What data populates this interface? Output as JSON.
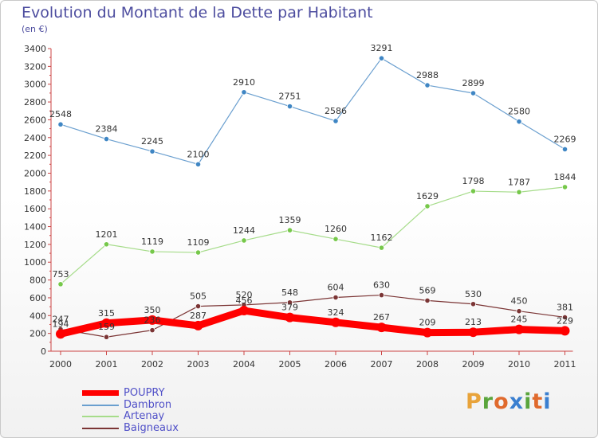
{
  "header": {
    "title": "Evolution du Montant de la Dette par Habitant",
    "subtitle": "(en €)"
  },
  "logo": {
    "text": "Proxiti",
    "letter_colors": [
      "#e8a33a",
      "#5aa53c",
      "#e06a2d",
      "#3a7fd0",
      "#5aa53c",
      "#e06a2d",
      "#3a7fd0"
    ]
  },
  "chart_data": {
    "type": "line",
    "title": "Evolution du Montant de la Dette par Habitant",
    "subtitle": "(en €)",
    "xlabel": "",
    "ylabel": "",
    "x": [
      "2000",
      "2001",
      "2002",
      "2003",
      "2004",
      "2005",
      "2006",
      "2007",
      "2008",
      "2009",
      "2010",
      "2011"
    ],
    "ylim": [
      0,
      3400
    ],
    "yticks": [
      0,
      200,
      400,
      600,
      800,
      1000,
      1200,
      1400,
      1600,
      1800,
      2000,
      2200,
      2400,
      2600,
      2800,
      3000,
      3200,
      3400
    ],
    "grid": false,
    "legend_position": "bottom-left",
    "series": [
      {
        "name": "Dambron",
        "color": "#6a9fcf",
        "marker_color": "#3f86c4",
        "values": [
          2548,
          2384,
          2245,
          2100,
          2910,
          2751,
          2586,
          3291,
          2988,
          2899,
          2580,
          2269
        ]
      },
      {
        "name": "Artenay",
        "color": "#a6dc8a",
        "marker_color": "#76c84a",
        "values": [
          753,
          1201,
          1119,
          1109,
          1244,
          1359,
          1260,
          1162,
          1629,
          1798,
          1787,
          1844
        ]
      },
      {
        "name": "Baigneaux",
        "color": "#7b3535",
        "marker_color": "#7b3535",
        "values": [
          247,
          159,
          236,
          505,
          520,
          548,
          604,
          630,
          569,
          530,
          450,
          381
        ]
      },
      {
        "name": "POUPRY",
        "color": "#ff0000",
        "marker_color": "#ff0000",
        "values": [
          194,
          315,
          350,
          287,
          456,
          379,
          324,
          267,
          209,
          213,
          245,
          229
        ]
      }
    ],
    "legend": [
      "POUPRY",
      "Dambron",
      "Artenay",
      "Baigneaux"
    ]
  }
}
